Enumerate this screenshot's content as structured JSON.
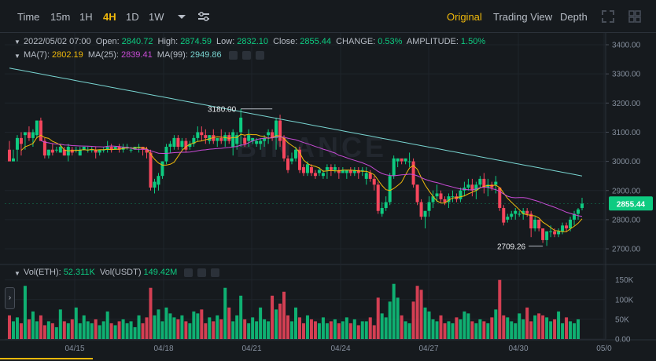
{
  "toolbar": {
    "intervals": [
      "Time",
      "15m",
      "1H",
      "4H",
      "1D",
      "1W"
    ],
    "active_interval": "4H",
    "views": [
      "Original",
      "Trading View",
      "Depth"
    ],
    "active_view": "Original"
  },
  "ohlc": {
    "date": "2022/05/02 07:00",
    "open_label": "Open:",
    "open": "2840.72",
    "high_label": "High:",
    "high": "2874.59",
    "low_label": "Low:",
    "low": "2832.10",
    "close_label": "Close:",
    "close": "2855.44",
    "change_label": "CHANGE:",
    "change": "0.53%",
    "amplitude_label": "AMPLITUDE:",
    "amplitude": "1.50%"
  },
  "ma": {
    "ma7_label": "MA(7):",
    "ma7": "2802.19",
    "ma25_label": "MA(25):",
    "ma25": "2839.41",
    "ma99_label": "MA(99):",
    "ma99": "2949.86"
  },
  "volume": {
    "eth_label": "Vol(ETH):",
    "eth": "52.311K",
    "usdt_label": "Vol(USDT)",
    "usdt": "149.42M"
  },
  "price_axis": {
    "ticks": [
      "3400.00",
      "3300.00",
      "3200.00",
      "3100.00",
      "3000.00",
      "2900.00",
      "2800.00",
      "2700.00"
    ],
    "current_price": "2855.44"
  },
  "volume_axis": {
    "ticks": [
      "150K",
      "100K",
      "50K",
      "0.00"
    ]
  },
  "time_axis": {
    "ticks": [
      "04/15",
      "04/18",
      "04/21",
      "04/24",
      "04/27",
      "04/30",
      "05/0"
    ]
  },
  "annotations": {
    "high": "3180.00",
    "low": "2709.26"
  },
  "watermark": "BINANCE",
  "colors": {
    "up": "#0ecb81",
    "down": "#f6465d",
    "ma7": "#f0b90b",
    "ma25": "#c94bd6",
    "ma99": "#78d4d0",
    "accent": "#f0b90b"
  },
  "chart_data": {
    "type": "candlestick",
    "price_range": [
      2650,
      3450
    ],
    "volume_range": [
      0,
      200000
    ],
    "candles_ohlc": [
      [
        3040,
        3070,
        3020,
        3000,
        0
      ],
      [
        3000,
        3040,
        3000,
        3010,
        0
      ],
      [
        3040,
        3090,
        3000,
        3080,
        0
      ],
      [
        3080,
        3100,
        3020,
        3060,
        0
      ],
      [
        3090,
        3100,
        3040,
        3100,
        0
      ],
      [
        3100,
        3120,
        3070,
        3080,
        0
      ],
      [
        3080,
        3110,
        3050,
        3100,
        0
      ],
      [
        3090,
        3140,
        3080,
        3140,
        0
      ],
      [
        3140,
        3150,
        3070,
        3070,
        0
      ],
      [
        3070,
        3080,
        3010,
        3020,
        0
      ],
      [
        3020,
        3040,
        3010,
        3040,
        0
      ],
      [
        3040,
        3060,
        3020,
        3030,
        0
      ],
      [
        3040,
        3050,
        3030,
        3040,
        0
      ],
      [
        3030,
        3060,
        3030,
        3050,
        0
      ],
      [
        3040,
        3050,
        3020,
        3020,
        0
      ],
      [
        3020,
        3060,
        3000,
        3050,
        0
      ],
      [
        3040,
        3050,
        3020,
        3030,
        0
      ],
      [
        3040,
        3050,
        3030,
        3040,
        0
      ],
      [
        3020,
        3050,
        3020,
        3040,
        0
      ],
      [
        3040,
        3050,
        3040,
        3050,
        0
      ],
      [
        3040,
        3050,
        3030,
        3040,
        0
      ],
      [
        3040,
        3050,
        3030,
        3040,
        0
      ],
      [
        3040,
        3050,
        3010,
        3030,
        0
      ],
      [
        3030,
        3040,
        3020,
        3040,
        0
      ],
      [
        3040,
        3050,
        3030,
        3040,
        0
      ],
      [
        3040,
        3070,
        3030,
        3050,
        0
      ],
      [
        3050,
        3060,
        3030,
        3040,
        0
      ],
      [
        3040,
        3050,
        3040,
        3050,
        0
      ],
      [
        3050,
        3060,
        3030,
        3040,
        0
      ],
      [
        3040,
        3060,
        3030,
        3050,
        0
      ],
      [
        3050,
        3060,
        3040,
        3050,
        0
      ],
      [
        3040,
        3050,
        3030,
        3040,
        0
      ],
      [
        3040,
        3050,
        3040,
        3050,
        0
      ],
      [
        3050,
        3060,
        3030,
        3050,
        0
      ],
      [
        3050,
        3040,
        3020,
        3040,
        0
      ],
      [
        3040,
        3050,
        3010,
        3030,
        0
      ],
      [
        3030,
        3040,
        2900,
        2910,
        0
      ],
      [
        2910,
        2940,
        2890,
        2930,
        0
      ],
      [
        2920,
        2960,
        2900,
        2950,
        0
      ],
      [
        2950,
        3000,
        2940,
        3000,
        0
      ],
      [
        3000,
        3060,
        2990,
        3050,
        0
      ],
      [
        3050,
        3070,
        3030,
        3060,
        0
      ],
      [
        3050,
        3090,
        3040,
        3080,
        0
      ],
      [
        3080,
        3090,
        3040,
        3050,
        0
      ],
      [
        3050,
        3080,
        3040,
        3070,
        0
      ],
      [
        3070,
        3080,
        3030,
        3040,
        0
      ],
      [
        3050,
        3070,
        3040,
        3060,
        0
      ],
      [
        3060,
        3090,
        3050,
        3080,
        0
      ],
      [
        3080,
        3120,
        3070,
        3100,
        0
      ],
      [
        3100,
        3120,
        3070,
        3090,
        0
      ],
      [
        3090,
        3110,
        3060,
        3080,
        0
      ],
      [
        3070,
        3090,
        3060,
        3090,
        0
      ],
      [
        3090,
        3110,
        3060,
        3070,
        0
      ],
      [
        3070,
        3080,
        3050,
        3080,
        0
      ],
      [
        3080,
        3110,
        3060,
        3070,
        0
      ],
      [
        3070,
        3100,
        3050,
        3090,
        0
      ],
      [
        3090,
        3100,
        3060,
        3070,
        0
      ],
      [
        3050,
        3110,
        3020,
        3100,
        0
      ],
      [
        3060,
        3100,
        3040,
        3090,
        0
      ],
      [
        3100,
        3180,
        3050,
        3150,
        0
      ],
      [
        3080,
        3090,
        3050,
        3060,
        0
      ],
      [
        3070,
        3110,
        3050,
        3090,
        0
      ],
      [
        3070,
        3080,
        3060,
        3080,
        0
      ],
      [
        3060,
        3080,
        3050,
        3070,
        0
      ],
      [
        3060,
        3080,
        3040,
        3070,
        0
      ],
      [
        3070,
        3090,
        3050,
        3080,
        0
      ],
      [
        3090,
        3110,
        3060,
        3100,
        0
      ],
      [
        3100,
        3110,
        3070,
        3080,
        0
      ],
      [
        3080,
        3150,
        3040,
        3140,
        0
      ],
      [
        3140,
        3160,
        3050,
        3070,
        0
      ],
      [
        3080,
        3090,
        3000,
        3010,
        0
      ],
      [
        3010,
        3020,
        2960,
        2970,
        0
      ],
      [
        3000,
        3030,
        2990,
        3010,
        0
      ],
      [
        3010,
        3050,
        3000,
        3040,
        0
      ],
      [
        3040,
        3050,
        2960,
        2970,
        0
      ],
      [
        2980,
        2990,
        2950,
        2960,
        0
      ],
      [
        2960,
        3000,
        2950,
        2990,
        0
      ],
      [
        2980,
        2990,
        2950,
        2960,
        0
      ],
      [
        2960,
        2970,
        2940,
        2950,
        0
      ],
      [
        2960,
        2980,
        2950,
        2970,
        0
      ],
      [
        2950,
        2970,
        2940,
        2960,
        0
      ],
      [
        2970,
        2990,
        2940,
        2980,
        0
      ],
      [
        2980,
        2990,
        2950,
        2970,
        0
      ],
      [
        2970,
        2990,
        2960,
        2980,
        0
      ],
      [
        2970,
        2980,
        2940,
        2960,
        0
      ],
      [
        2960,
        2980,
        2960,
        2970,
        0
      ],
      [
        2960,
        2970,
        2940,
        2970,
        0
      ],
      [
        2970,
        2980,
        2950,
        2960,
        0
      ],
      [
        2960,
        2980,
        2950,
        2970,
        0
      ],
      [
        2970,
        2980,
        2940,
        2960,
        0
      ],
      [
        2970,
        2980,
        2950,
        2970,
        0
      ],
      [
        2940,
        2980,
        2920,
        2960,
        0
      ],
      [
        2960,
        2970,
        2930,
        2940,
        0
      ],
      [
        2940,
        2950,
        2900,
        2920,
        0
      ],
      [
        2920,
        2930,
        2820,
        2830,
        0
      ],
      [
        2820,
        2860,
        2810,
        2840,
        0
      ],
      [
        2840,
        2880,
        2830,
        2860,
        0
      ],
      [
        2860,
        2960,
        2850,
        2950,
        0
      ],
      [
        2950,
        3020,
        2940,
        3010,
        0
      ],
      [
        3000,
        3010,
        2980,
        3010,
        0
      ],
      [
        3010,
        3000,
        2990,
        3000,
        0
      ],
      [
        3000,
        3010,
        2990,
        3010,
        0
      ],
      [
        3000,
        3030,
        2980,
        3000,
        0
      ],
      [
        3000,
        3010,
        2910,
        2920,
        0
      ],
      [
        2920,
        2920,
        2850,
        2860,
        0
      ],
      [
        2860,
        2870,
        2800,
        2810,
        0
      ],
      [
        2810,
        2830,
        2770,
        2830,
        0
      ],
      [
        2830,
        2880,
        2810,
        2860,
        0
      ],
      [
        2860,
        2900,
        2840,
        2880,
        0
      ],
      [
        2880,
        2920,
        2860,
        2890,
        0
      ],
      [
        2890,
        2900,
        2860,
        2870,
        0
      ],
      [
        2870,
        2880,
        2850,
        2860,
        0
      ],
      [
        2860,
        2890,
        2840,
        2880,
        0
      ],
      [
        2880,
        2900,
        2860,
        2880,
        0
      ],
      [
        2880,
        2890,
        2860,
        2870,
        0
      ],
      [
        2870,
        2910,
        2860,
        2900,
        0
      ],
      [
        2900,
        2930,
        2880,
        2910,
        0
      ],
      [
        2910,
        2940,
        2900,
        2920,
        0
      ],
      [
        2920,
        2940,
        2880,
        2900,
        0
      ],
      [
        2900,
        2930,
        2870,
        2920,
        0
      ],
      [
        2920,
        2950,
        2910,
        2940,
        0
      ],
      [
        2940,
        2960,
        2890,
        2910,
        0
      ],
      [
        2910,
        2940,
        2880,
        2920,
        0
      ],
      [
        2920,
        2930,
        2900,
        2910,
        0
      ],
      [
        2920,
        2950,
        2890,
        2930,
        0
      ],
      [
        2910,
        2910,
        2830,
        2840,
        0
      ],
      [
        2840,
        2850,
        2780,
        2790,
        0
      ],
      [
        2800,
        2820,
        2790,
        2810,
        0
      ],
      [
        2810,
        2830,
        2800,
        2820,
        0
      ],
      [
        2820,
        2840,
        2800,
        2830,
        0
      ],
      [
        2820,
        2830,
        2810,
        2820,
        0
      ],
      [
        2820,
        2840,
        2800,
        2830,
        0
      ],
      [
        2830,
        2840,
        2810,
        2820,
        0
      ],
      [
        2820,
        2830,
        2740,
        2770,
        0
      ],
      [
        2770,
        2810,
        2760,
        2800,
        0
      ],
      [
        2800,
        2800,
        2760,
        2770,
        0
      ],
      [
        2770,
        2760,
        2720,
        2730,
        0
      ],
      [
        2730,
        2760,
        2710,
        2760,
        0
      ],
      [
        2760,
        2780,
        2740,
        2760,
        0
      ],
      [
        2760,
        2770,
        2740,
        2750,
        0
      ],
      [
        2750,
        2770,
        2740,
        2760,
        0
      ],
      [
        2760,
        2790,
        2750,
        2780,
        0
      ],
      [
        2780,
        2790,
        2760,
        2770,
        0
      ],
      [
        2770,
        2810,
        2760,
        2800,
        0
      ],
      [
        2800,
        2830,
        2780,
        2820,
        0
      ],
      [
        2820,
        2840,
        2800,
        2835,
        0
      ],
      [
        2840,
        2875,
        2832,
        2855,
        0
      ]
    ],
    "volume": [
      60,
      45,
      55,
      40,
      135,
      50,
      70,
      45,
      60,
      35,
      45,
      40,
      30,
      75,
      45,
      40,
      50,
      80,
      40,
      60,
      45,
      40,
      50,
      35,
      45,
      70,
      40,
      35,
      45,
      50,
      40,
      45,
      30,
      60,
      40,
      55,
      130,
      60,
      75,
      45,
      80,
      65,
      55,
      50,
      60,
      45,
      40,
      70,
      65,
      75,
      40,
      55,
      45,
      60,
      50,
      130,
      80,
      45,
      60,
      110,
      50,
      40,
      55,
      45,
      80,
      50,
      45,
      110,
      75,
      90,
      120,
      60,
      45,
      80,
      55,
      40,
      60,
      50,
      45,
      40,
      55,
      40,
      45,
      50,
      40,
      45,
      55,
      40,
      50,
      35,
      45,
      45,
      55,
      35,
      105,
      65,
      55,
      95,
      140,
      105,
      60,
      45,
      40,
      95,
      135,
      125,
      80,
      70,
      50,
      45,
      60,
      40,
      45,
      40,
      55,
      50,
      70,
      65,
      45,
      40,
      50,
      45,
      40,
      55,
      75,
      150,
      60,
      55,
      45,
      40,
      65,
      50,
      80,
      45,
      60,
      65,
      60,
      55,
      45,
      50,
      70,
      40,
      55,
      45,
      40,
      50
    ]
  }
}
